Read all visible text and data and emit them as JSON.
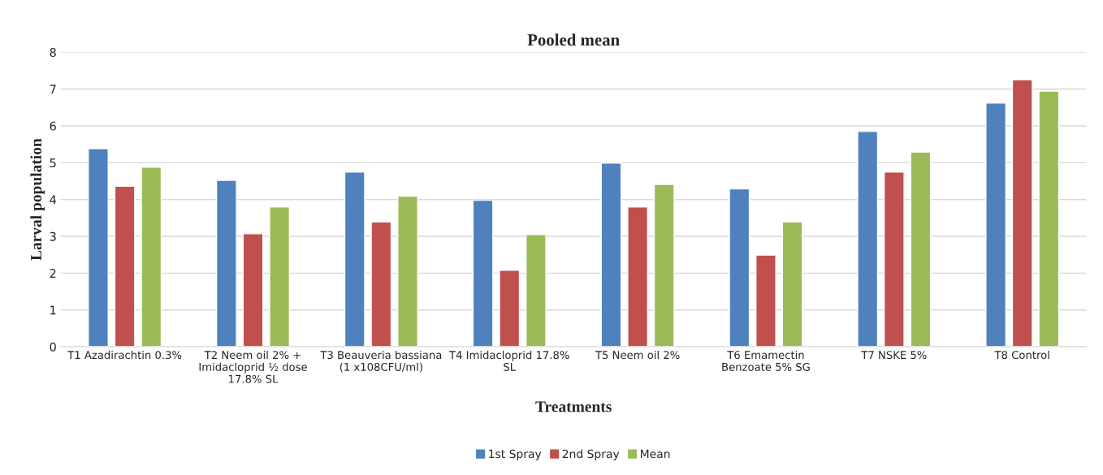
{
  "chart_data": {
    "type": "bar",
    "title": "Pooled mean",
    "xlabel": "Treatments",
    "ylabel": "Larval population",
    "categories": [
      "T1 Azadirachtin 0.3%",
      "T2 Neem oil 2% +\nImidacloprid ½ dose\n17.8% SL",
      "T3 Beauveria bassiana\n(1 x108CFU/ml)",
      "T4 Imidacloprid 17.8%\nSL",
      "T5 Neem oil 2%",
      "T6 Emamectin\nBenzoate 5% SG",
      "T7 NSKE 5%",
      "T8 Control"
    ],
    "series": [
      {
        "name": "1st Spray",
        "color": "#4f81bd",
        "values": [
          5.38,
          4.52,
          4.75,
          3.98,
          4.99,
          4.29,
          5.85,
          6.62
        ]
      },
      {
        "name": "2nd Spray",
        "color": "#c0504d",
        "values": [
          4.36,
          3.07,
          3.39,
          2.08,
          3.8,
          2.49,
          4.75,
          7.25
        ]
      },
      {
        "name": "Mean",
        "color": "#9bbb59",
        "values": [
          4.88,
          3.8,
          4.09,
          3.05,
          4.41,
          3.39,
          5.29,
          6.94
        ]
      }
    ],
    "ylim": [
      0,
      8
    ],
    "yticks": [
      0,
      1,
      2,
      3,
      4,
      5,
      6,
      7,
      8
    ],
    "grid": "y",
    "legend": "bottom"
  }
}
